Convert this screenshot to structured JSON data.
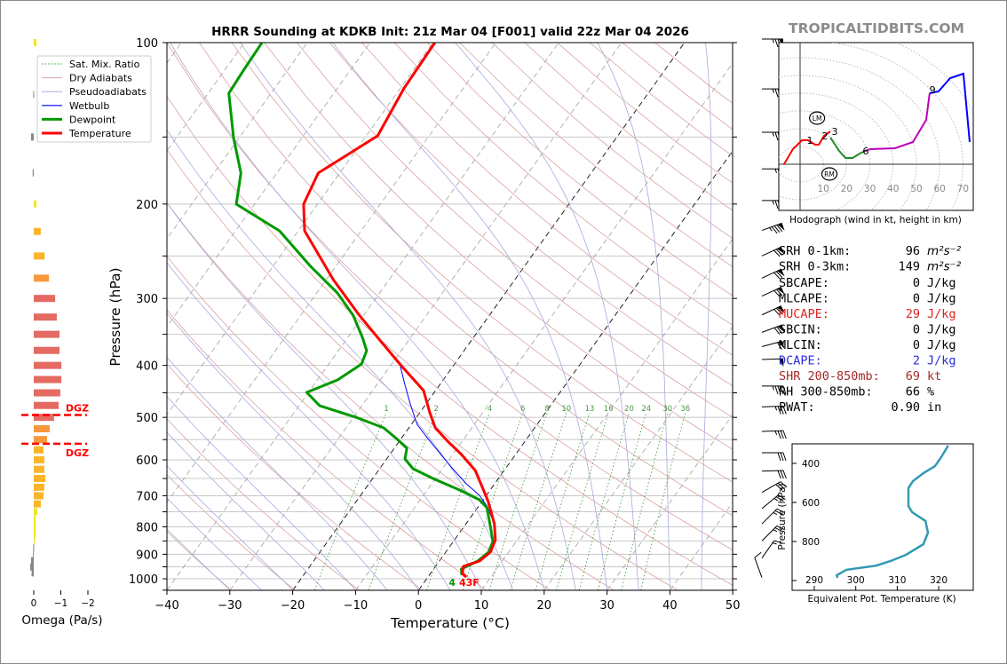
{
  "site_brand": "TROPICALTIDBITS.COM",
  "colors": {
    "temperature": "#ff0000",
    "dewpoint": "#009900",
    "wetbulb": "#0000ff",
    "dry_adiabat": "#d9a3a3",
    "pseudoadiabat": "#a9a9dd",
    "mixing_ratio": "#339933",
    "isotherm": "#a0a0a0",
    "dgz": "#ff0000",
    "theta_e": "#3399b3"
  },
  "chart_data": [
    {
      "type": "line",
      "id": "skewt",
      "title": "HRRR Sounding at KDKB Init: 21z Mar 04 [F001] valid 22z Mar 04 2026",
      "xlabel": "Temperature (°C)",
      "ylabel": "Pressure (hPa)",
      "xlim": [
        -40,
        50
      ],
      "ylim": [
        1050,
        100
      ],
      "y_scale": "log",
      "skewed": true,
      "grid": true,
      "xticks": [
        "−40",
        "−30",
        "−20",
        "−10",
        "0",
        "10",
        "20",
        "30",
        "40",
        "50"
      ],
      "xtick_values": [
        -40,
        -30,
        -20,
        -10,
        0,
        10,
        20,
        30,
        40,
        50
      ],
      "yticks": [
        100,
        200,
        300,
        400,
        500,
        600,
        700,
        800,
        900,
        1000
      ],
      "legend": {
        "placement": "upper-left",
        "entries": [
          {
            "label": "Sat. Mix. Ratio",
            "style": "dotted-green"
          },
          {
            "label": "Dry Adiabats",
            "style": "thin-red"
          },
          {
            "label": "Pseudoadiabats",
            "style": "thin-blue"
          },
          {
            "label": "Wetbulb",
            "style": "blue"
          },
          {
            "label": "Dewpoint",
            "style": "thick-green"
          },
          {
            "label": "Temperature",
            "style": "thick-red"
          }
        ]
      },
      "mixing_ratio_labels": [
        1,
        2,
        4,
        6,
        8,
        10,
        13,
        16,
        20,
        24,
        30,
        36
      ],
      "surface_labels": {
        "dewpoint": "4",
        "temperature": "43F"
      },
      "series": [
        {
          "name": "Temperature",
          "pressure": [
            100,
            121.9,
            149.2,
            175.1,
            200.1,
            224.4,
            276.7,
            322.4,
            354.5,
            397.6,
            445.7,
            490,
            523.1,
            555.9,
            586.5,
            628.1,
            672.7,
            717.8,
            789.6,
            845.8,
            891.9,
            926.6,
            948,
            977.4,
            992.4
          ],
          "values": [
            -59.7,
            -59.4,
            -58.2,
            -63.4,
            -62.2,
            -59.0,
            -48.9,
            -40.7,
            -35.3,
            -28.7,
            -21.9,
            -18.4,
            -15.8,
            -12.1,
            -8.6,
            -4.6,
            -1.7,
            1.0,
            4.5,
            6.5,
            7.1,
            6.4,
            4.4,
            5.1,
            6.1
          ]
        },
        {
          "name": "Dewpoint",
          "pressure": [
            100,
            112.1,
            124.3,
            150.4,
            175.1,
            200.1,
            224.4,
            261.4,
            293.1,
            322.4,
            354.5,
            375.4,
            397.6,
            425.7,
            449.0,
            475.6,
            499.5,
            523.1,
            549.6,
            570.9,
            597.7,
            623.4,
            652.6,
            685.8,
            712.3,
            737.1,
            789.6,
            852.2,
            891.9,
            926.6,
            959,
            985
          ],
          "values": [
            -87.2,
            -87.0,
            -86.7,
            -80.9,
            -75.7,
            -72.9,
            -63.0,
            -54.0,
            -46.7,
            -41.7,
            -37.7,
            -35.5,
            -34.8,
            -36.8,
            -40.3,
            -36.7,
            -29.7,
            -24.0,
            -20.5,
            -18.0,
            -17.1,
            -14.7,
            -10.0,
            -4.4,
            -0.6,
            1.5,
            3.8,
            6.3,
            6.8,
            6.1,
            4.4,
            5.2
          ]
        },
        {
          "name": "Wetbulb",
          "pressure": [
            100,
            121.9,
            149.2,
            175.1,
            200.1,
            224.4,
            276.7,
            322.4,
            354.5,
            397.6,
            429.1,
            472,
            515.1,
            543.4,
            582.0,
            623.4,
            665.0,
            698.9,
            731.5,
            789.6,
            845.8,
            891.9,
            926.6,
            948,
            977.4,
            992.4
          ],
          "values": [
            -59.7,
            -59.4,
            -58.2,
            -63.4,
            -62.2,
            -59.0,
            -48.9,
            -40.7,
            -35.3,
            -28.7,
            -26.0,
            -22.5,
            -19.1,
            -16.2,
            -12.3,
            -8.4,
            -4.5,
            -1.1,
            1.3,
            4.5,
            6.5,
            7.0,
            6.3,
            4.4,
            5.0,
            5.8
          ]
        }
      ],
      "wind_barbs": [
        {
          "p": 100,
          "dir": 270,
          "kt": 75
        },
        {
          "p": 122,
          "dir": 270,
          "kt": 75
        },
        {
          "p": 147,
          "dir": 270,
          "kt": 75
        },
        {
          "p": 172,
          "dir": 270,
          "kt": 65
        },
        {
          "p": 197,
          "dir": 270,
          "kt": 75
        },
        {
          "p": 224,
          "dir": 250,
          "kt": 85
        },
        {
          "p": 250,
          "dir": 245,
          "kt": 70
        },
        {
          "p": 275,
          "dir": 245,
          "kt": 70
        },
        {
          "p": 297,
          "dir": 245,
          "kt": 70
        },
        {
          "p": 322,
          "dir": 245,
          "kt": 70
        },
        {
          "p": 347,
          "dir": 250,
          "kt": 70
        },
        {
          "p": 369,
          "dir": 255,
          "kt": 60
        },
        {
          "p": 390,
          "dir": 268,
          "kt": 50
        },
        {
          "p": 437,
          "dir": 270,
          "kt": 45
        },
        {
          "p": 478,
          "dir": 268,
          "kt": 35
        },
        {
          "p": 531,
          "dir": 268,
          "kt": 35
        },
        {
          "p": 582,
          "dir": 270,
          "kt": 30
        },
        {
          "p": 630,
          "dir": 268,
          "kt": 30
        },
        {
          "p": 690,
          "dir": 240,
          "kt": 30
        },
        {
          "p": 740,
          "dir": 230,
          "kt": 25
        },
        {
          "p": 790,
          "dir": 225,
          "kt": 25
        },
        {
          "p": 850,
          "dir": 225,
          "kt": 25
        },
        {
          "p": 915,
          "dir": 215,
          "kt": 15
        },
        {
          "p": 995,
          "dir": 160,
          "kt": 10
        }
      ]
    },
    {
      "type": "line",
      "id": "hodograph",
      "xlabel": "Hodograph (wind in kt, height in km)",
      "xticks": [
        10,
        20,
        30,
        40,
        50,
        60,
        70
      ],
      "rings_kt": [
        10,
        20,
        30,
        40,
        50,
        60,
        70,
        80
      ],
      "segments": [
        {
          "color": "#ff0000",
          "u": [
            -6.9,
            -3.1,
            0.8,
            3.4,
            6.5,
            8.0,
            10.3,
            13.0
          ],
          "v": [
            0,
            8.5,
            13.5,
            13.5,
            11,
            11,
            16,
            18.5
          ]
        },
        {
          "color": "#228b22",
          "u": [
            13.0,
            16.8,
            19.5,
            22.5,
            26.3,
            28.2
          ],
          "v": [
            15,
            7.5,
            3.5,
            3.5,
            6.5,
            7.5
          ]
        },
        {
          "color": "#bb00bb",
          "u": [
            28.2,
            30.2,
            40.8,
            48.5,
            54.2,
            55.7
          ],
          "v": [
            7.5,
            8.5,
            9,
            12.5,
            25,
            40
          ]
        },
        {
          "color": "#0000ff",
          "u": [
            55.7,
            59.5,
            64.5,
            70.2,
            72.9
          ],
          "v": [
            40,
            41,
            48.5,
            51,
            12.5
          ]
        }
      ],
      "height_labels": [
        {
          "text": "1",
          "u": 4.2,
          "v": 13.5
        },
        {
          "text": "2",
          "u": 10.7,
          "v": 16
        },
        {
          "text": "3",
          "u": 14.9,
          "v": 18.5
        },
        {
          "text": "6",
          "u": 28.2,
          "v": 7.5
        },
        {
          "text": "9",
          "u": 56.9,
          "v": 42
        }
      ],
      "storm_motion": [
        {
          "text": "LM",
          "u": 7.3,
          "v": 26
        },
        {
          "text": "RM",
          "u": 12.6,
          "v": -5.5
        }
      ]
    },
    {
      "type": "line",
      "id": "theta-e",
      "xlabel": "Equivalent Pot. Temperature (K)",
      "ylabel": "Pressure (hPa)",
      "xticks": [
        290,
        300,
        310,
        320
      ],
      "yticks": [
        400,
        600,
        800
      ],
      "x": [
        322.3,
        320.6,
        319.1,
        316.3,
        313.8,
        312.7,
        312.7,
        313.6,
        316.8,
        317.4,
        316.3,
        312.1,
        308.4,
        305.0,
        297.7,
        295.4,
        295.6
      ],
      "y": [
        309,
        368,
        414,
        450,
        491,
        527,
        618,
        650,
        695,
        755,
        814,
        868,
        900,
        923,
        945,
        973,
        986
      ]
    },
    {
      "type": "bar",
      "id": "omega",
      "xlabel": "Omega (Pa/s)",
      "xticks": [
        "0",
        "−1",
        "−2"
      ],
      "xtick_values": [
        0,
        -1,
        -2
      ],
      "dgz_label": "DGZ",
      "dgz_bounds_hpa": [
        495,
        560
      ],
      "pressure": [
        100,
        125,
        150,
        175,
        200,
        225,
        250,
        275,
        300,
        325,
        350,
        375,
        400,
        425,
        450,
        475,
        500,
        525,
        550,
        575,
        600,
        625,
        650,
        675,
        700,
        725,
        750,
        775,
        800,
        825,
        850,
        875,
        900,
        925,
        950,
        975
      ],
      "values": [
        -0.1,
        0.02,
        0.1,
        0.04,
        -0.1,
        -0.26,
        -0.4,
        -0.56,
        -0.79,
        -0.85,
        -0.95,
        -0.95,
        -1.02,
        -1.02,
        -0.98,
        -0.92,
        -0.75,
        -0.59,
        -0.49,
        -0.36,
        -0.39,
        -0.39,
        -0.43,
        -0.39,
        -0.36,
        -0.26,
        -0.13,
        -0.07,
        -0.07,
        -0.07,
        -0.03,
        0.02,
        0.03,
        0.1,
        0.13,
        0.08
      ]
    }
  ],
  "stats": [
    {
      "label": "SRH 0-1km:",
      "value": "96",
      "unit": "m²s⁻²",
      "color": "#000000"
    },
    {
      "label": "SRH 0-3km:",
      "value": "149",
      "unit": "m²s⁻²",
      "color": "#000000"
    },
    {
      "label": "SBCAPE:",
      "value": "0",
      "unit": "J/kg",
      "color": "#000000"
    },
    {
      "label": "MLCAPE:",
      "value": "0",
      "unit": "J/kg",
      "color": "#000000"
    },
    {
      "label": "MUCAPE:",
      "value": "29",
      "unit": "J/kg",
      "color": "#dd2222"
    },
    {
      "label": "SBCIN:",
      "value": "0",
      "unit": "J/kg",
      "color": "#000000"
    },
    {
      "label": "MLCIN:",
      "value": "0",
      "unit": "J/kg",
      "color": "#000000"
    },
    {
      "label": "DCAPE:",
      "value": "2",
      "unit": "J/kg",
      "color": "#2b2bdd"
    },
    {
      "label": "SHR 200-850mb:",
      "value": "69",
      "unit": "kt",
      "color": "#a52a2a"
    },
    {
      "label": "RH 300-850mb:",
      "value": "66",
      "unit": "%",
      "color": "#000000"
    },
    {
      "label": "PWAT:",
      "value": "0.90",
      "unit": "in",
      "color": "#000000"
    }
  ]
}
